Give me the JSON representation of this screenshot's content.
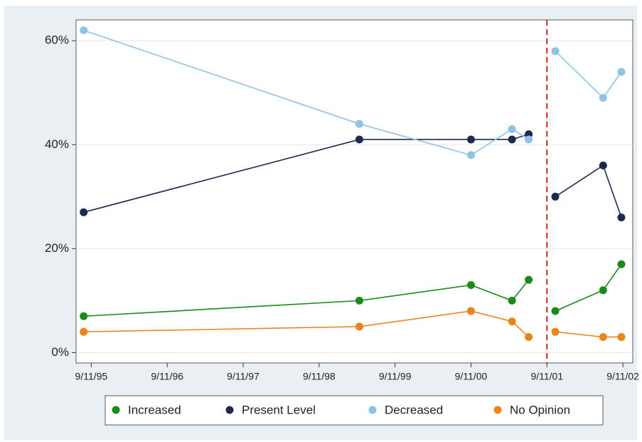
{
  "chart_data": {
    "type": "line",
    "x": [
      1995.6,
      1999.23,
      2000.7,
      2001.24,
      2001.46,
      2001.7,
      2001.81,
      2002.44,
      2002.68
    ],
    "series": [
      {
        "name": "Increased",
        "color": "#1a8a1a",
        "values": [
          7,
          10,
          13,
          10,
          14,
          null,
          8,
          12,
          17
        ]
      },
      {
        "name": "Present Level",
        "color": "#1b2a4e",
        "values": [
          27,
          41,
          41,
          41,
          42,
          null,
          30,
          36,
          26
        ]
      },
      {
        "name": "Decreased",
        "color": "#8ec3e6",
        "values": [
          62,
          44,
          38,
          43,
          41,
          null,
          58,
          49,
          54
        ]
      },
      {
        "name": "No Opinion",
        "color": "#e8861a",
        "values": [
          4,
          5,
          8,
          6,
          3,
          null,
          4,
          3,
          3
        ]
      }
    ],
    "xlim": [
      1995.5,
      2002.83
    ],
    "xticks": [
      {
        "value": 1995.7,
        "label": "9/11/95"
      },
      {
        "value": 1996.7,
        "label": "9/11/96"
      },
      {
        "value": 1997.7,
        "label": "9/11/97"
      },
      {
        "value": 1998.7,
        "label": "9/11/98"
      },
      {
        "value": 1999.7,
        "label": "9/11/99"
      },
      {
        "value": 2000.7,
        "label": "9/11/00"
      },
      {
        "value": 2001.7,
        "label": "9/11/01"
      },
      {
        "value": 2002.7,
        "label": "9/11/02"
      }
    ],
    "ylim": [
      -2,
      64
    ],
    "yticks": [
      {
        "value": 0,
        "label": "0%"
      },
      {
        "value": 20,
        "label": "20%"
      },
      {
        "value": 40,
        "label": "40%"
      },
      {
        "value": 60,
        "label": "60%"
      }
    ],
    "grid": true,
    "vline": {
      "value": 2001.7,
      "color": "#d42020"
    },
    "legend": "bottom"
  }
}
